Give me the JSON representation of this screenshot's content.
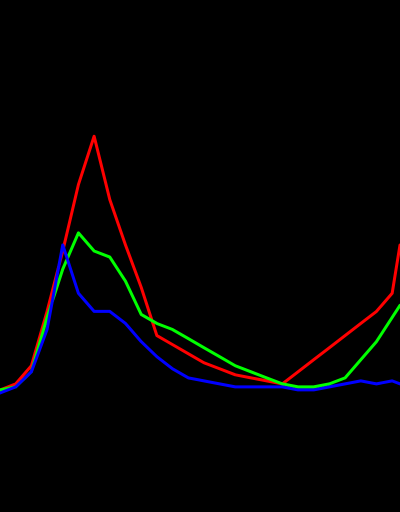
{
  "chart_data": {
    "type": "line",
    "x": [
      0,
      10,
      20,
      30,
      40,
      50,
      60,
      70,
      80,
      90,
      100,
      110,
      120,
      130,
      140,
      150,
      160,
      170,
      180,
      190,
      200,
      210,
      220,
      230,
      240,
      250,
      255
    ],
    "xlim": [
      0,
      255
    ],
    "ylim": [
      0,
      1
    ],
    "grid": false,
    "legend": "none",
    "series": [
      {
        "color": "#ff0000",
        "values": [
          0.04,
          0.06,
          0.12,
          0.3,
          0.5,
          0.72,
          0.88,
          0.67,
          0.52,
          0.38,
          0.22,
          0.19,
          0.16,
          0.13,
          0.11,
          0.09,
          0.08,
          0.07,
          0.06,
          0.1,
          0.14,
          0.18,
          0.22,
          0.26,
          0.3,
          0.36,
          0.52
        ]
      },
      {
        "color": "#00ff00",
        "values": [
          0.04,
          0.05,
          0.1,
          0.28,
          0.44,
          0.56,
          0.5,
          0.48,
          0.4,
          0.29,
          0.26,
          0.24,
          0.21,
          0.18,
          0.15,
          0.12,
          0.1,
          0.08,
          0.06,
          0.05,
          0.05,
          0.06,
          0.08,
          0.14,
          0.2,
          0.28,
          0.32
        ]
      },
      {
        "color": "#0000ff",
        "values": [
          0.03,
          0.05,
          0.1,
          0.24,
          0.52,
          0.36,
          0.3,
          0.3,
          0.26,
          0.2,
          0.15,
          0.11,
          0.08,
          0.07,
          0.06,
          0.05,
          0.05,
          0.05,
          0.05,
          0.04,
          0.04,
          0.05,
          0.06,
          0.07,
          0.06,
          0.07,
          0.06
        ]
      }
    ]
  }
}
